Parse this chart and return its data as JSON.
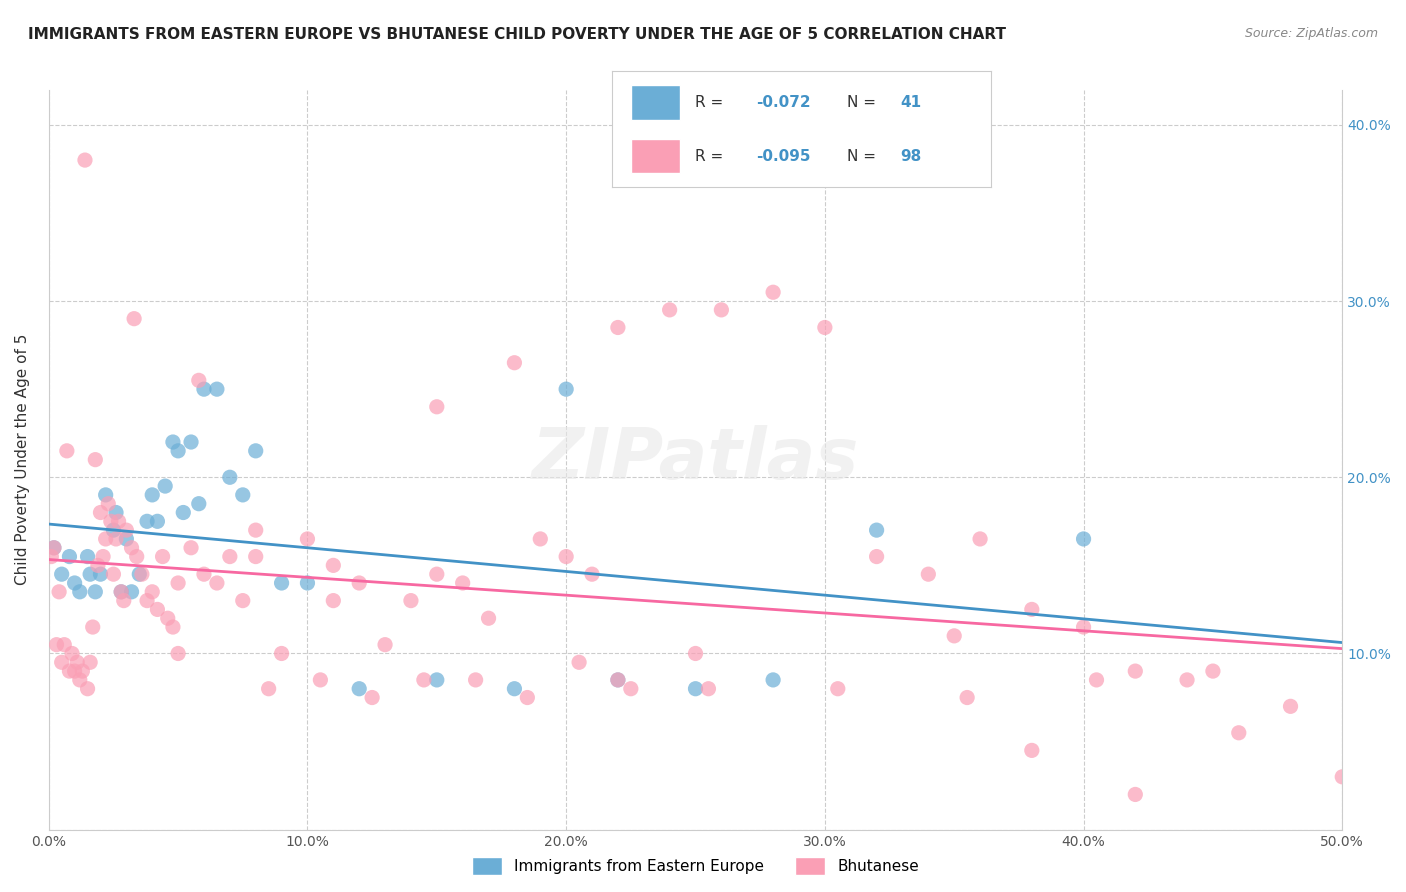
{
  "title": "IMMIGRANTS FROM EASTERN EUROPE VS BHUTANESE CHILD POVERTY UNDER THE AGE OF 5 CORRELATION CHART",
  "source": "Source: ZipAtlas.com",
  "xlabel": "",
  "ylabel": "Child Poverty Under the Age of 5",
  "xlim": [
    0.0,
    0.5
  ],
  "ylim": [
    0.0,
    0.42
  ],
  "xticks": [
    0.0,
    0.1,
    0.2,
    0.3,
    0.4,
    0.5
  ],
  "xticklabels": [
    "0.0%",
    "10.0%",
    "20.0%",
    "30.0%",
    "40.0%",
    "50.0%"
  ],
  "yticks_left": [
    0.0,
    0.1,
    0.2,
    0.3,
    0.4
  ],
  "yticks_right": [
    0.1,
    0.2,
    0.3,
    0.4
  ],
  "yticklabels_right": [
    "10.0%",
    "20.0%",
    "30.0%",
    "40.0%"
  ],
  "legend_r1": "R = -0.072",
  "legend_n1": "N = 41",
  "legend_r2": "R = -0.095",
  "legend_n2": "N = 98",
  "blue_color": "#6baed6",
  "pink_color": "#fa9fb5",
  "blue_line_color": "#4292c6",
  "pink_line_color": "#f768a1",
  "watermark": "ZIPatlas",
  "blue_scatter_x": [
    0.002,
    0.005,
    0.008,
    0.01,
    0.012,
    0.015,
    0.016,
    0.018,
    0.02,
    0.022,
    0.025,
    0.026,
    0.028,
    0.03,
    0.032,
    0.035,
    0.038,
    0.04,
    0.042,
    0.045,
    0.048,
    0.05,
    0.052,
    0.055,
    0.058,
    0.06,
    0.065,
    0.07,
    0.075,
    0.08,
    0.09,
    0.1,
    0.12,
    0.15,
    0.18,
    0.2,
    0.22,
    0.25,
    0.28,
    0.32,
    0.4
  ],
  "blue_scatter_y": [
    0.16,
    0.145,
    0.155,
    0.14,
    0.135,
    0.155,
    0.145,
    0.135,
    0.145,
    0.19,
    0.17,
    0.18,
    0.135,
    0.165,
    0.135,
    0.145,
    0.175,
    0.19,
    0.175,
    0.195,
    0.22,
    0.215,
    0.18,
    0.22,
    0.185,
    0.25,
    0.25,
    0.2,
    0.19,
    0.215,
    0.14,
    0.14,
    0.08,
    0.085,
    0.08,
    0.25,
    0.085,
    0.08,
    0.085,
    0.17,
    0.165
  ],
  "pink_scatter_x": [
    0.001,
    0.003,
    0.005,
    0.006,
    0.008,
    0.009,
    0.01,
    0.011,
    0.012,
    0.013,
    0.015,
    0.016,
    0.017,
    0.018,
    0.019,
    0.02,
    0.021,
    0.022,
    0.023,
    0.024,
    0.025,
    0.026,
    0.027,
    0.028,
    0.029,
    0.03,
    0.032,
    0.034,
    0.036,
    0.038,
    0.04,
    0.042,
    0.044,
    0.046,
    0.048,
    0.05,
    0.055,
    0.06,
    0.065,
    0.07,
    0.075,
    0.08,
    0.09,
    0.1,
    0.11,
    0.12,
    0.13,
    0.14,
    0.15,
    0.16,
    0.17,
    0.18,
    0.19,
    0.2,
    0.21,
    0.22,
    0.24,
    0.26,
    0.28,
    0.3,
    0.32,
    0.34,
    0.36,
    0.38,
    0.4,
    0.42,
    0.44,
    0.46,
    0.48,
    0.5,
    0.002,
    0.004,
    0.007,
    0.014,
    0.033,
    0.058,
    0.085,
    0.105,
    0.125,
    0.145,
    0.165,
    0.185,
    0.205,
    0.225,
    0.255,
    0.305,
    0.355,
    0.405,
    0.45,
    0.35,
    0.25,
    0.15,
    0.05,
    0.08,
    0.11,
    0.22,
    0.38,
    0.42
  ],
  "pink_scatter_y": [
    0.155,
    0.105,
    0.095,
    0.105,
    0.09,
    0.1,
    0.09,
    0.095,
    0.085,
    0.09,
    0.08,
    0.095,
    0.115,
    0.21,
    0.15,
    0.18,
    0.155,
    0.165,
    0.185,
    0.175,
    0.145,
    0.165,
    0.175,
    0.135,
    0.13,
    0.17,
    0.16,
    0.155,
    0.145,
    0.13,
    0.135,
    0.125,
    0.155,
    0.12,
    0.115,
    0.14,
    0.16,
    0.145,
    0.14,
    0.155,
    0.13,
    0.155,
    0.1,
    0.165,
    0.15,
    0.14,
    0.105,
    0.13,
    0.145,
    0.14,
    0.12,
    0.265,
    0.165,
    0.155,
    0.145,
    0.285,
    0.295,
    0.295,
    0.305,
    0.285,
    0.155,
    0.145,
    0.165,
    0.125,
    0.115,
    0.09,
    0.085,
    0.055,
    0.07,
    0.03,
    0.16,
    0.135,
    0.215,
    0.38,
    0.29,
    0.255,
    0.08,
    0.085,
    0.075,
    0.085,
    0.085,
    0.075,
    0.095,
    0.08,
    0.08,
    0.08,
    0.075,
    0.085,
    0.09,
    0.11,
    0.1,
    0.24,
    0.1,
    0.17,
    0.13,
    0.085,
    0.045,
    0.02
  ]
}
